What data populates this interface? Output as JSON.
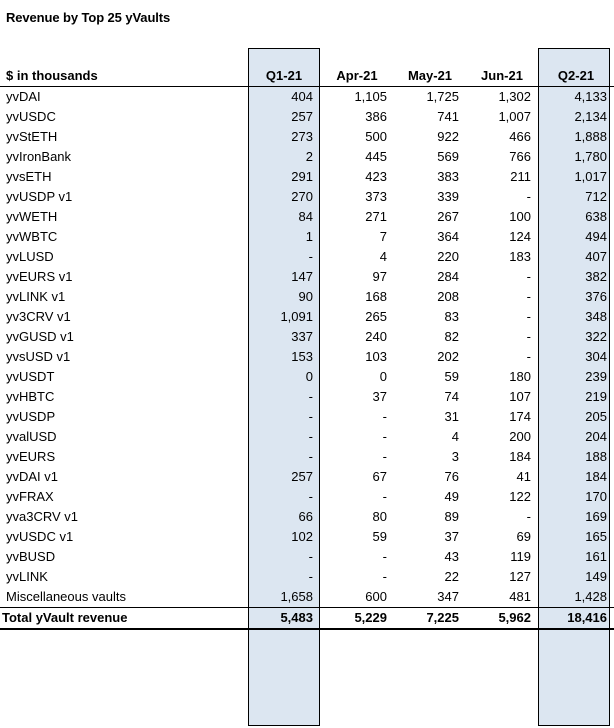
{
  "title": "Revenue by Top 25 yVaults",
  "table": {
    "columns": [
      "$ in thousands",
      "Q1-21",
      "Apr-21",
      "May-21",
      "Jun-21",
      "Q2-21"
    ],
    "rows": [
      [
        "yvDAI",
        "404",
        "1,105",
        "1,725",
        "1,302",
        "4,133"
      ],
      [
        "yvUSDC",
        "257",
        "386",
        "741",
        "1,007",
        "2,134"
      ],
      [
        "yvStETH",
        "273",
        "500",
        "922",
        "466",
        "1,888"
      ],
      [
        "yvIronBank",
        "2",
        "445",
        "569",
        "766",
        "1,780"
      ],
      [
        "yvsETH",
        "291",
        "423",
        "383",
        "211",
        "1,017"
      ],
      [
        "yvUSDP v1",
        "270",
        "373",
        "339",
        "-",
        "712"
      ],
      [
        "yvWETH",
        "84",
        "271",
        "267",
        "100",
        "638"
      ],
      [
        "yvWBTC",
        "1",
        "7",
        "364",
        "124",
        "494"
      ],
      [
        "yvLUSD",
        "-",
        "4",
        "220",
        "183",
        "407"
      ],
      [
        "yvEURS v1",
        "147",
        "97",
        "284",
        "-",
        "382"
      ],
      [
        "yvLINK v1",
        "90",
        "168",
        "208",
        "-",
        "376"
      ],
      [
        "yv3CRV v1",
        "1,091",
        "265",
        "83",
        "-",
        "348"
      ],
      [
        "yvGUSD v1",
        "337",
        "240",
        "82",
        "-",
        "322"
      ],
      [
        "yvsUSD v1",
        "153",
        "103",
        "202",
        "-",
        "304"
      ],
      [
        "yvUSDT",
        "0",
        "0",
        "59",
        "180",
        "239"
      ],
      [
        "yvHBTC",
        "-",
        "37",
        "74",
        "107",
        "219"
      ],
      [
        "yvUSDP",
        "-",
        "-",
        "31",
        "174",
        "205"
      ],
      [
        "yvalUSD",
        "-",
        "-",
        "4",
        "200",
        "204"
      ],
      [
        "yvEURS",
        "-",
        "-",
        "3",
        "184",
        "188"
      ],
      [
        "yvDAI v1",
        "257",
        "67",
        "76",
        "41",
        "184"
      ],
      [
        "yvFRAX",
        "-",
        "-",
        "49",
        "122",
        "170"
      ],
      [
        "yva3CRV v1",
        "66",
        "80",
        "89",
        "-",
        "169"
      ],
      [
        "yvUSDC v1",
        "102",
        "59",
        "37",
        "69",
        "165"
      ],
      [
        "yvBUSD",
        "-",
        "-",
        "43",
        "119",
        "161"
      ],
      [
        "yvLINK",
        "-",
        "-",
        "22",
        "127",
        "149"
      ],
      [
        "Miscellaneous vaults",
        "1,658",
        "600",
        "347",
        "481",
        "1,428"
      ]
    ],
    "total": [
      "Total yVault revenue",
      "5,483",
      "5,229",
      "7,225",
      "5,962",
      "18,416"
    ]
  },
  "colors": {
    "highlight_fill": "#dce6f1",
    "border": "#000000",
    "text": "#000000"
  }
}
